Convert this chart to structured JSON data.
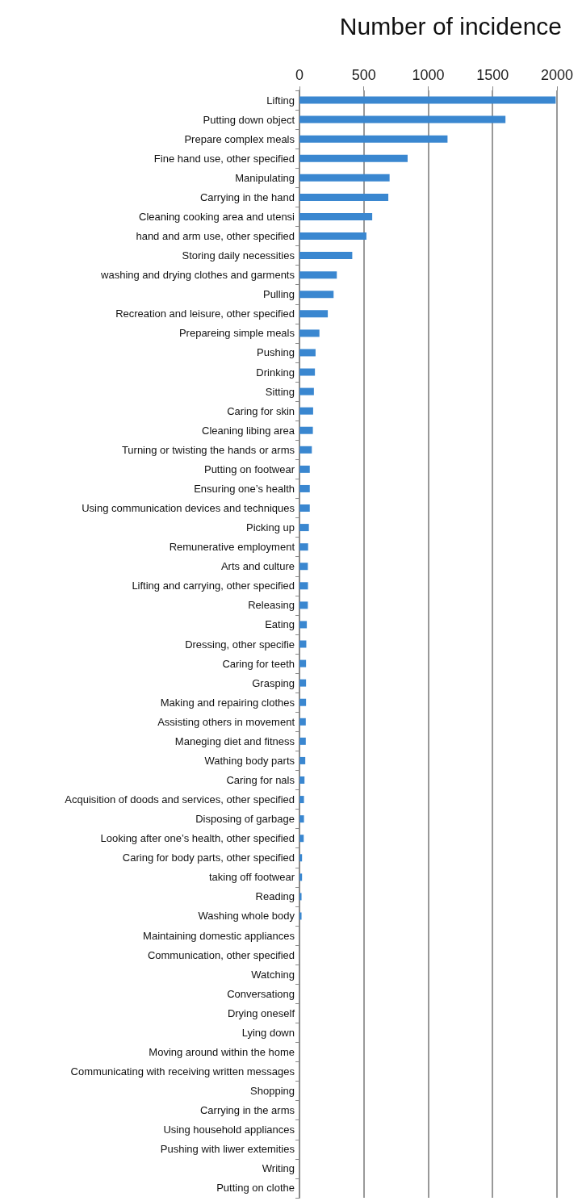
{
  "chart_data": {
    "type": "bar",
    "orientation": "horizontal",
    "title": "Number of incidence",
    "categories": [
      "Lifting",
      "Putting down object",
      "Prepare complex meals",
      "Fine hand use, other specified",
      "Manipulating",
      "Carrying in the hand",
      "Cleaning cooking area and utensi",
      "hand and arm use, other specified",
      "Storing daily necessities",
      "washing and drying clothes and garments",
      "Pulling",
      "Recreation and leisure, other specified",
      "Prepareing simple meals",
      "Pushing",
      "Drinking",
      "Sitting",
      "Caring for skin",
      "Cleaning libing area",
      "Turning or twisting the hands or arms",
      "Putting on footwear",
      "Ensuring one’s health",
      "Using communication devices and techniques",
      "Picking up",
      "Remunerative employment",
      "Arts and culture",
      "Lifting and carrying, other specified",
      "Releasing",
      "Eating",
      "Dressing, other specifie",
      "Caring for teeth",
      "Grasping",
      "Making and repairing clothes",
      "Assisting others in movement",
      "Maneging diet and fitness",
      "Wathing body parts",
      "Caring for nals",
      "Acquisition of doods and services, other specified",
      "Disposing of garbage",
      "Looking after one’s health, other specified",
      "Caring for body parts, other specified",
      "taking off footwear",
      "Reading",
      "Washing whole body",
      "Maintaining domestic appliances",
      "Communication, other specified",
      "Watching",
      "Conversationg",
      "Drying oneself",
      "Lying down",
      "Moving around within the home",
      "Communicating with receiving written messages",
      "Shopping",
      "Carrying in the arms",
      "Using household appliances",
      "Pushing with liwer extemities",
      "Writing",
      "Putting on clothe"
    ],
    "values": [
      1990,
      1600,
      1150,
      840,
      700,
      690,
      565,
      520,
      410,
      290,
      265,
      220,
      155,
      125,
      120,
      112,
      106,
      104,
      96,
      80,
      80,
      80,
      73,
      67,
      65,
      66,
      65,
      57,
      53,
      51,
      51,
      51,
      49,
      49,
      45,
      39,
      35,
      35,
      33,
      20,
      20,
      16,
      16,
      0,
      0,
      0,
      0,
      0,
      0,
      0,
      0,
      0,
      0,
      0,
      0,
      0,
      0
    ],
    "color": "#3a87d0",
    "xlim": [
      0,
      2000
    ],
    "xticks": [
      0,
      500,
      1000,
      1500,
      2000
    ],
    "grid": "x"
  }
}
